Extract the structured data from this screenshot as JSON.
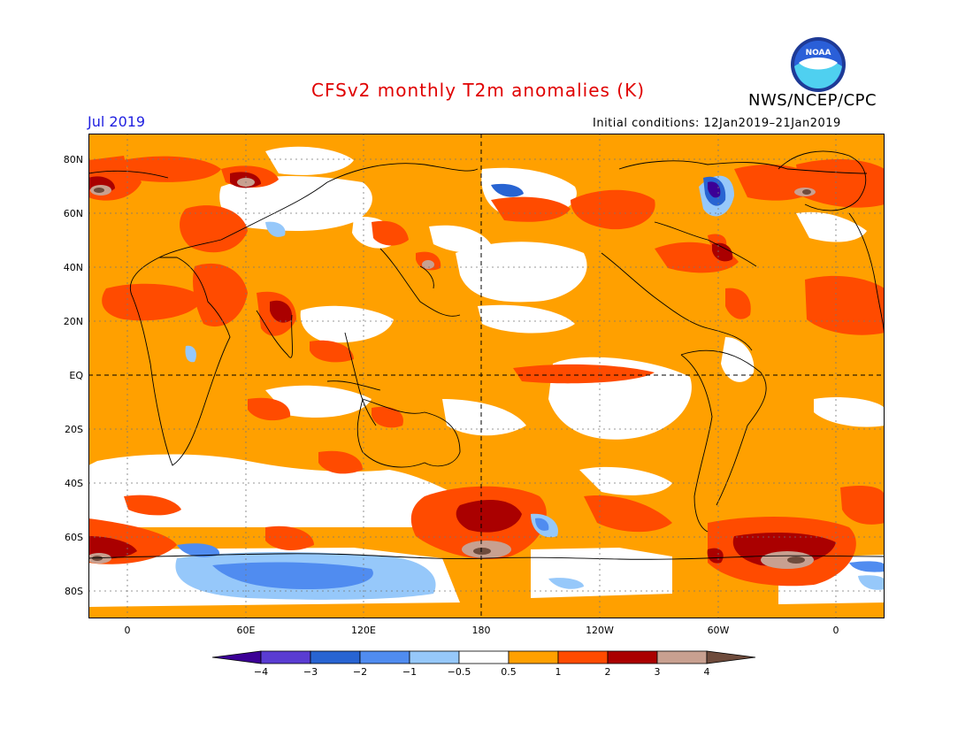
{
  "title": "CFSv2 monthly T2m anomalies (K)",
  "period": "Jul 2019",
  "initial_conditions": "Initial conditions: 12Jan2019–21Jan2019",
  "agency": "NWS/NCEP/CPC",
  "logo_text": "NOAA",
  "lat_labels": [
    "80N",
    "60N",
    "40N",
    "20N",
    "EQ",
    "20S",
    "40S",
    "60S",
    "80S"
  ],
  "lon_labels": [
    "0",
    "60E",
    "120E",
    "180",
    "120W",
    "60W",
    "0"
  ],
  "colorbar": {
    "labels": [
      "−4",
      "−3",
      "−2",
      "−1",
      "−0.5",
      "0.5",
      "1",
      "2",
      "3",
      "4"
    ],
    "colors": [
      "#3c0096",
      "#5a3cd2",
      "#2864d2",
      "#508cf0",
      "#96c8fa",
      "#ffffff",
      "#ffa000",
      "#ff4b00",
      "#aa0000",
      "#c8a090",
      "#6e4b3c"
    ]
  },
  "anomaly_colors": {
    "orange": "#ffa000",
    "red_orange": "#ff4b00",
    "dark_red": "#aa0000",
    "tan": "#c8a090",
    "brown": "#6e4b3c",
    "light_blue": "#96c8fa",
    "mid_blue": "#508cf0",
    "blue": "#2864d2",
    "dark_blue": "#3c0096"
  }
}
